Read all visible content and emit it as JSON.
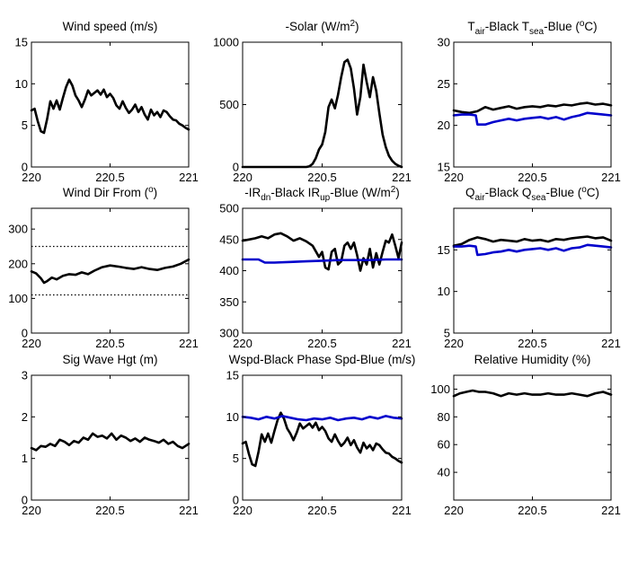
{
  "figure": {
    "x_ticks": [
      "220",
      "220.5",
      "221"
    ]
  },
  "chart_data": [
    {
      "type": "line",
      "title": "Wind speed (m/s)",
      "ylim": [
        0,
        15
      ],
      "yticks": [
        0,
        5,
        10,
        15
      ],
      "ytick_labels": [
        "0",
        "5",
        "10",
        "15"
      ],
      "xlim": [
        220,
        221
      ],
      "series": [
        {
          "color": "#000000",
          "x": [
            220.0,
            220.02,
            220.04,
            220.06,
            220.08,
            220.1,
            220.12,
            220.14,
            220.16,
            220.18,
            220.2,
            220.22,
            220.24,
            220.26,
            220.28,
            220.3,
            220.32,
            220.34,
            220.36,
            220.38,
            220.4,
            220.42,
            220.44,
            220.46,
            220.48,
            220.5,
            220.52,
            220.54,
            220.56,
            220.58,
            220.6,
            220.62,
            220.64,
            220.66,
            220.68,
            220.7,
            220.72,
            220.74,
            220.76,
            220.78,
            220.8,
            220.82,
            220.84,
            220.86,
            220.88,
            220.9,
            220.92,
            220.94,
            220.96,
            220.98,
            221.0
          ],
          "y": [
            6.8,
            7.0,
            5.5,
            4.3,
            4.1,
            5.8,
            7.9,
            7.0,
            8.0,
            6.9,
            8.3,
            9.6,
            10.5,
            9.8,
            8.6,
            8.0,
            7.2,
            8.1,
            9.2,
            8.6,
            8.9,
            9.2,
            8.7,
            9.3,
            8.4,
            8.8,
            8.3,
            7.4,
            7.0,
            7.9,
            7.1,
            6.5,
            6.9,
            7.5,
            6.6,
            7.2,
            6.3,
            5.7,
            6.9,
            6.2,
            6.6,
            6.0,
            6.8,
            6.6,
            6.1,
            5.7,
            5.6,
            5.2,
            5.0,
            4.7,
            4.5
          ]
        }
      ]
    },
    {
      "type": "line",
      "title": "-Solar (W/m",
      "title_sup": "2",
      "title_after": ")",
      "ylim": [
        0,
        1000
      ],
      "yticks": [
        0,
        500,
        1000
      ],
      "ytick_labels": [
        "0",
        "500",
        "1000"
      ],
      "xlim": [
        220,
        221
      ],
      "series": [
        {
          "color": "#000000",
          "x": [
            220.0,
            220.4,
            220.42,
            220.44,
            220.46,
            220.48,
            220.5,
            220.52,
            220.54,
            220.56,
            220.58,
            220.6,
            220.62,
            220.64,
            220.66,
            220.68,
            220.7,
            220.72,
            220.74,
            220.76,
            220.78,
            220.8,
            220.82,
            220.84,
            220.86,
            220.88,
            220.9,
            220.92,
            220.94,
            220.96,
            220.98,
            221.0
          ],
          "y": [
            0,
            0,
            5,
            25,
            70,
            140,
            180,
            280,
            480,
            540,
            470,
            580,
            720,
            840,
            860,
            790,
            630,
            420,
            560,
            820,
            680,
            560,
            720,
            610,
            430,
            260,
            160,
            90,
            50,
            25,
            10,
            0
          ]
        }
      ]
    },
    {
      "type": "line",
      "title_parts": [
        {
          "t": "T"
        },
        {
          "t": "air",
          "sub": true
        },
        {
          "t": "-Black  T"
        },
        {
          "t": "sea",
          "sub": true
        },
        {
          "t": "-Blue ("
        },
        {
          "t": "o",
          "sup": true
        },
        {
          "t": "C)"
        }
      ],
      "ylim": [
        15,
        30
      ],
      "yticks": [
        15,
        20,
        25,
        30
      ],
      "ytick_labels": [
        "15",
        "20",
        "25",
        "30"
      ],
      "xlim": [
        220,
        221
      ],
      "series": [
        {
          "color": "#000000",
          "x": [
            220.0,
            220.05,
            220.1,
            220.15,
            220.2,
            220.25,
            220.3,
            220.35,
            220.4,
            220.45,
            220.5,
            220.55,
            220.6,
            220.65,
            220.7,
            220.75,
            220.8,
            220.85,
            220.9,
            220.95,
            221.0
          ],
          "y": [
            21.8,
            21.6,
            21.5,
            21.7,
            22.2,
            21.9,
            22.1,
            22.3,
            22.0,
            22.2,
            22.3,
            22.2,
            22.4,
            22.3,
            22.5,
            22.4,
            22.6,
            22.7,
            22.5,
            22.6,
            22.4
          ]
        },
        {
          "color": "#0000cc",
          "x": [
            220.0,
            220.05,
            220.1,
            220.14,
            220.15,
            220.2,
            220.25,
            220.3,
            220.35,
            220.4,
            220.45,
            220.5,
            220.55,
            220.6,
            220.65,
            220.7,
            220.75,
            220.8,
            220.85,
            220.9,
            220.95,
            221.0
          ],
          "y": [
            21.2,
            21.3,
            21.3,
            21.2,
            20.1,
            20.1,
            20.4,
            20.6,
            20.8,
            20.6,
            20.8,
            20.9,
            21.0,
            20.8,
            21.0,
            20.7,
            21.0,
            21.2,
            21.5,
            21.4,
            21.3,
            21.2
          ]
        }
      ]
    },
    {
      "type": "line",
      "title_parts": [
        {
          "t": "Wind Dir From ("
        },
        {
          "t": "o",
          "sup": true
        },
        {
          "t": ")"
        }
      ],
      "ylim": [
        0,
        360
      ],
      "yticks": [
        0,
        100,
        200,
        300
      ],
      "ytick_labels": [
        "0",
        "100",
        "200",
        "300"
      ],
      "xlim": [
        220,
        221
      ],
      "reference_lines": [
        250,
        110
      ],
      "series": [
        {
          "color": "#000000",
          "x": [
            220.0,
            220.03,
            220.06,
            220.08,
            220.1,
            220.13,
            220.16,
            220.2,
            220.24,
            220.28,
            220.32,
            220.36,
            220.4,
            220.45,
            220.5,
            220.55,
            220.6,
            220.65,
            220.7,
            220.75,
            220.8,
            220.85,
            220.9,
            220.95,
            221.0
          ],
          "y": [
            178,
            172,
            158,
            145,
            150,
            160,
            155,
            165,
            170,
            168,
            175,
            170,
            180,
            190,
            195,
            192,
            188,
            185,
            190,
            185,
            182,
            188,
            192,
            200,
            212
          ]
        }
      ]
    },
    {
      "type": "line",
      "title_parts": [
        {
          "t": "-IR"
        },
        {
          "t": "dn",
          "sub": true
        },
        {
          "t": "-Black  IR"
        },
        {
          "t": "up",
          "sub": true
        },
        {
          "t": "-Blue (W/m"
        },
        {
          "t": "2",
          "sup": true
        },
        {
          "t": ")"
        }
      ],
      "ylim": [
        300,
        500
      ],
      "yticks": [
        300,
        350,
        400,
        450,
        500
      ],
      "ytick_labels": [
        "300",
        "350",
        "400",
        "450",
        "500"
      ],
      "xlim": [
        220,
        221
      ],
      "series": [
        {
          "color": "#000000",
          "x": [
            220.0,
            220.04,
            220.08,
            220.12,
            220.16,
            220.2,
            220.24,
            220.28,
            220.32,
            220.36,
            220.4,
            220.44,
            220.48,
            220.5,
            220.52,
            220.54,
            220.56,
            220.58,
            220.6,
            220.62,
            220.64,
            220.66,
            220.68,
            220.7,
            220.72,
            220.74,
            220.76,
            220.78,
            220.8,
            220.82,
            220.84,
            220.86,
            220.88,
            220.9,
            220.92,
            220.94,
            220.96,
            220.98,
            221.0
          ],
          "y": [
            448,
            450,
            452,
            455,
            452,
            458,
            460,
            455,
            448,
            452,
            447,
            440,
            422,
            430,
            405,
            402,
            430,
            435,
            410,
            415,
            440,
            445,
            435,
            445,
            425,
            400,
            420,
            410,
            435,
            405,
            428,
            410,
            430,
            448,
            445,
            458,
            440,
            420,
            445
          ]
        },
        {
          "color": "#0000cc",
          "x": [
            220.0,
            220.1,
            220.14,
            220.2,
            220.3,
            220.4,
            220.5,
            220.6,
            220.7,
            220.8,
            220.9,
            221.0
          ],
          "y": [
            418,
            418,
            413,
            413,
            414,
            415,
            416,
            417,
            417,
            417,
            418,
            418
          ]
        }
      ]
    },
    {
      "type": "line",
      "title_parts": [
        {
          "t": "Q"
        },
        {
          "t": "air",
          "sub": true
        },
        {
          "t": "-Black  Q"
        },
        {
          "t": "sea",
          "sub": true
        },
        {
          "t": "-Blue ("
        },
        {
          "t": "o",
          "sup": true
        },
        {
          "t": "C)"
        }
      ],
      "ylim": [
        5,
        20
      ],
      "yticks": [
        5,
        10,
        15
      ],
      "ytick_labels": [
        "5",
        "10",
        "15"
      ],
      "xlim": [
        220,
        221
      ],
      "series": [
        {
          "color": "#000000",
          "x": [
            220.0,
            220.05,
            220.1,
            220.15,
            220.2,
            220.25,
            220.3,
            220.35,
            220.4,
            220.45,
            220.5,
            220.55,
            220.6,
            220.65,
            220.7,
            220.75,
            220.8,
            220.85,
            220.9,
            220.95,
            221.0
          ],
          "y": [
            15.5,
            15.7,
            16.2,
            16.5,
            16.3,
            16.0,
            16.2,
            16.1,
            16.0,
            16.3,
            16.1,
            16.2,
            16.0,
            16.3,
            16.2,
            16.4,
            16.5,
            16.6,
            16.4,
            16.5,
            16.1
          ]
        },
        {
          "color": "#0000cc",
          "x": [
            220.0,
            220.05,
            220.1,
            220.14,
            220.15,
            220.2,
            220.25,
            220.3,
            220.35,
            220.4,
            220.45,
            220.5,
            220.55,
            220.6,
            220.65,
            220.7,
            220.75,
            220.8,
            220.85,
            220.9,
            220.95,
            221.0
          ],
          "y": [
            15.4,
            15.4,
            15.5,
            15.4,
            14.4,
            14.5,
            14.7,
            14.8,
            15.0,
            14.8,
            15.0,
            15.1,
            15.2,
            15.0,
            15.2,
            14.9,
            15.2,
            15.3,
            15.6,
            15.5,
            15.4,
            15.3
          ]
        }
      ]
    },
    {
      "type": "line",
      "title": "Sig Wave Hgt (m)",
      "ylim": [
        0,
        3
      ],
      "yticks": [
        0,
        1,
        2,
        3
      ],
      "ytick_labels": [
        "0",
        "1",
        "2",
        "3"
      ],
      "xlim": [
        220,
        221
      ],
      "series": [
        {
          "color": "#000000",
          "x": [
            220.0,
            220.03,
            220.06,
            220.09,
            220.12,
            220.15,
            220.18,
            220.21,
            220.24,
            220.27,
            220.3,
            220.33,
            220.36,
            220.39,
            220.42,
            220.45,
            220.48,
            220.51,
            220.54,
            220.57,
            220.6,
            220.63,
            220.66,
            220.69,
            220.72,
            220.75,
            220.78,
            220.81,
            220.84,
            220.87,
            220.9,
            220.93,
            220.96,
            221.0
          ],
          "y": [
            1.25,
            1.2,
            1.3,
            1.28,
            1.35,
            1.3,
            1.45,
            1.4,
            1.32,
            1.42,
            1.38,
            1.5,
            1.45,
            1.6,
            1.52,
            1.55,
            1.48,
            1.6,
            1.45,
            1.55,
            1.5,
            1.42,
            1.48,
            1.4,
            1.5,
            1.45,
            1.42,
            1.38,
            1.45,
            1.35,
            1.4,
            1.3,
            1.25,
            1.35
          ]
        }
      ]
    },
    {
      "type": "line",
      "title": "Wspd-Black  Phase Spd-Blue (m/s)",
      "ylim": [
        0,
        15
      ],
      "yticks": [
        0,
        5,
        10,
        15
      ],
      "ytick_labels": [
        "0",
        "5",
        "10",
        "15"
      ],
      "xlim": [
        220,
        221
      ],
      "series": [
        {
          "color": "#000000",
          "x": [
            220.0,
            220.02,
            220.04,
            220.06,
            220.08,
            220.1,
            220.12,
            220.14,
            220.16,
            220.18,
            220.2,
            220.22,
            220.24,
            220.26,
            220.28,
            220.3,
            220.32,
            220.34,
            220.36,
            220.38,
            220.4,
            220.42,
            220.44,
            220.46,
            220.48,
            220.5,
            220.52,
            220.54,
            220.56,
            220.58,
            220.6,
            220.62,
            220.64,
            220.66,
            220.68,
            220.7,
            220.72,
            220.74,
            220.76,
            220.78,
            220.8,
            220.82,
            220.84,
            220.86,
            220.88,
            220.9,
            220.92,
            220.94,
            220.96,
            220.98,
            221.0
          ],
          "y": [
            6.8,
            7.0,
            5.5,
            4.3,
            4.1,
            5.8,
            7.9,
            7.0,
            8.0,
            6.9,
            8.3,
            9.6,
            10.5,
            9.8,
            8.6,
            8.0,
            7.2,
            8.1,
            9.2,
            8.6,
            8.9,
            9.2,
            8.7,
            9.3,
            8.4,
            8.8,
            8.3,
            7.4,
            7.0,
            7.9,
            7.1,
            6.5,
            6.9,
            7.5,
            6.6,
            7.2,
            6.3,
            5.7,
            6.9,
            6.2,
            6.6,
            6.0,
            6.8,
            6.6,
            6.1,
            5.7,
            5.6,
            5.2,
            5.0,
            4.7,
            4.5
          ]
        },
        {
          "color": "#0000cc",
          "x": [
            220.0,
            220.05,
            220.1,
            220.15,
            220.2,
            220.25,
            220.3,
            220.35,
            220.4,
            220.45,
            220.5,
            220.55,
            220.6,
            220.65,
            220.7,
            220.75,
            220.8,
            220.85,
            220.9,
            220.95,
            221.0
          ],
          "y": [
            10.0,
            9.9,
            9.7,
            10.0,
            9.8,
            10.1,
            9.9,
            9.7,
            9.6,
            9.8,
            9.7,
            9.9,
            9.6,
            9.8,
            9.9,
            9.7,
            10.0,
            9.8,
            10.1,
            9.9,
            9.8
          ]
        }
      ]
    },
    {
      "type": "line",
      "title": "Relative Humidity (%)",
      "ylim": [
        20,
        110
      ],
      "yticks": [
        40,
        60,
        80,
        100
      ],
      "ytick_labels": [
        "40",
        "60",
        "80",
        "100"
      ],
      "xlim": [
        220,
        221
      ],
      "series": [
        {
          "color": "#000000",
          "x": [
            220.0,
            220.04,
            220.08,
            220.12,
            220.16,
            220.2,
            220.25,
            220.3,
            220.35,
            220.4,
            220.45,
            220.5,
            220.55,
            220.6,
            220.65,
            220.7,
            220.75,
            220.8,
            220.85,
            220.9,
            220.95,
            221.0
          ],
          "y": [
            95,
            97,
            98,
            99,
            98,
            98,
            97,
            95,
            97,
            96,
            97,
            96,
            96,
            97,
            96,
            96,
            97,
            96,
            95,
            97,
            98,
            96
          ]
        }
      ]
    }
  ]
}
